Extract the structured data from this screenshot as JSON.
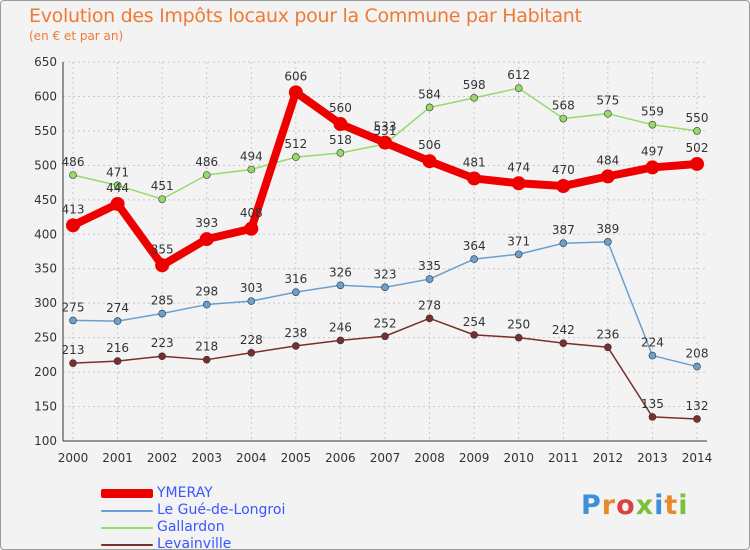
{
  "title": "Evolution des Impôts locaux pour la Commune par Habitant",
  "subtitle": "(en € et par an)",
  "logo": {
    "text": "Proxiti"
  },
  "chart_data": {
    "type": "line",
    "categories": [
      "2000",
      "2001",
      "2002",
      "2003",
      "2004",
      "2005",
      "2006",
      "2007",
      "2008",
      "2009",
      "2010",
      "2011",
      "2012",
      "2013",
      "2014"
    ],
    "ylim": [
      100,
      650
    ],
    "yticks": [
      100,
      150,
      200,
      250,
      300,
      350,
      400,
      450,
      500,
      550,
      600,
      650
    ],
    "grid": true,
    "legend_position": "bottom-left",
    "series": [
      {
        "name": "YMERAY",
        "color": "#ee0000",
        "values": [
          413,
          444,
          355,
          393,
          408,
          606,
          560,
          533,
          506,
          481,
          474,
          470,
          484,
          497,
          502
        ],
        "labels": [
          "413",
          "444",
          "355",
          "393",
          "408",
          "606",
          "560",
          "533",
          "506",
          "481",
          "474",
          "470",
          "484",
          "497",
          "502"
        ],
        "emphasis": true
      },
      {
        "name": "Le Gué-de-Longroi",
        "color": "#6a9fd0",
        "values": [
          275,
          274,
          285,
          298,
          303,
          316,
          326,
          323,
          335,
          364,
          371,
          387,
          389,
          224,
          208
        ],
        "labels": [
          "275",
          "274",
          "285",
          "298",
          "303",
          "316",
          "326",
          "323",
          "335",
          "364",
          "371",
          "387",
          "389",
          "224",
          "208"
        ]
      },
      {
        "name": "Gallardon",
        "color": "#96da6a",
        "values": [
          486,
          471,
          451,
          486,
          494,
          512,
          518,
          531,
          584,
          598,
          612,
          568,
          575,
          559,
          550
        ],
        "labels": [
          "486",
          "471",
          "451",
          "486",
          "494",
          "512",
          "518",
          "531",
          "584",
          "598",
          "612",
          "568",
          "575",
          "559",
          "550"
        ]
      },
      {
        "name": "Levainville",
        "color": "#7a2e2e",
        "values": [
          213,
          216,
          223,
          218,
          228,
          238,
          246,
          252,
          278,
          254,
          250,
          242,
          236,
          135,
          132
        ],
        "labels": [
          "213",
          "216",
          "223",
          "218",
          "228",
          "238",
          "246",
          "252",
          "278",
          "254",
          "250",
          "242",
          "236",
          "135",
          "132"
        ]
      }
    ]
  }
}
